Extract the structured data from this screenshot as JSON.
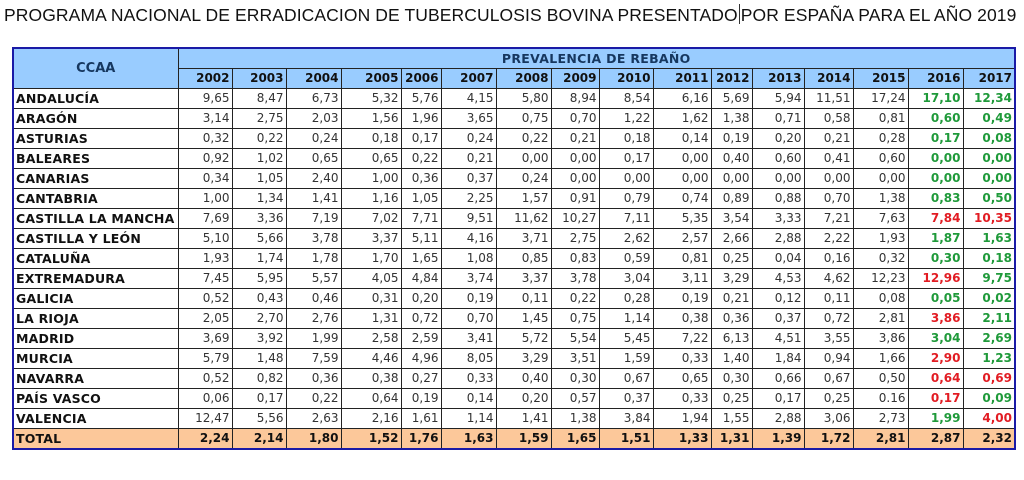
{
  "title_part1": "PROGRAMA NACIONAL DE ERRADICACION DE TUBERCULOSIS BOVINA PRESENTADO",
  "title_part2": "POR ESPAÑA PARA EL AÑO 2019",
  "table": {
    "ccaa_header": "CCAA",
    "group_header": "PREVALENCIA DE REBAÑO",
    "years": [
      "2002",
      "2003",
      "2004",
      "2005",
      "2006",
      "2007",
      "2008",
      "2009",
      "2010",
      "2011",
      "2012",
      "2013",
      "2014",
      "2015",
      "2016",
      "2017"
    ],
    "colors": {
      "green": "#1f9a3a",
      "red": "#e21c23",
      "header_bg": "#99ccff",
      "total_bg": "#fcc89a",
      "border": "#1a1aa6"
    },
    "rows": [
      {
        "name": "ANDALUCÍA",
        "values": [
          "9,65",
          "8,47",
          "6,73",
          "5,32",
          "5,76",
          "4,15",
          "5,80",
          "8,94",
          "8,54",
          "6,16",
          "5,69",
          "5,94",
          "11,51",
          "17,24",
          "17,10",
          "12,34"
        ],
        "c2016": "green",
        "c2017": "green"
      },
      {
        "name": "ARAGÓN",
        "values": [
          "3,14",
          "2,75",
          "2,03",
          "1,56",
          "1,96",
          "3,65",
          "0,75",
          "0,70",
          "1,22",
          "1,62",
          "1,38",
          "0,71",
          "0,58",
          "0,81",
          "0,60",
          "0,49"
        ],
        "c2016": "green",
        "c2017": "green"
      },
      {
        "name": "ASTURIAS",
        "values": [
          "0,32",
          "0,22",
          "0,24",
          "0,18",
          "0,17",
          "0,24",
          "0,22",
          "0,21",
          "0,18",
          "0,14",
          "0,19",
          "0,20",
          "0,21",
          "0,28",
          "0,17",
          "0,08"
        ],
        "c2016": "green",
        "c2017": "green"
      },
      {
        "name": "BALEARES",
        "values": [
          "0,92",
          "1,02",
          "0,65",
          "0,65",
          "0,22",
          "0,21",
          "0,00",
          "0,00",
          "0,17",
          "0,00",
          "0,40",
          "0,60",
          "0,41",
          "0,60",
          "0,00",
          "0,00"
        ],
        "c2016": "green",
        "c2017": "green"
      },
      {
        "name": "CANARIAS",
        "values": [
          "0,34",
          "1,05",
          "2,40",
          "1,00",
          "0,36",
          "0,37",
          "0,24",
          "0,00",
          "0,00",
          "0,00",
          "0,00",
          "0,00",
          "0,00",
          "0,00",
          "0,00",
          "0,00"
        ],
        "c2016": "green",
        "c2017": "green"
      },
      {
        "name": "CANTABRIA",
        "values": [
          "1,00",
          "1,34",
          "1,41",
          "1,16",
          "1,05",
          "2,25",
          "1,57",
          "0,91",
          "0,79",
          "0,74",
          "0,89",
          "0,88",
          "0,70",
          "1,38",
          "0,83",
          "0,50"
        ],
        "c2016": "green",
        "c2017": "green"
      },
      {
        "name": "CASTILLA LA MANCHA",
        "values": [
          "7,69",
          "3,36",
          "7,19",
          "7,02",
          "7,71",
          "9,51",
          "11,62",
          "10,27",
          "7,11",
          "5,35",
          "3,54",
          "3,33",
          "7,21",
          "7,63",
          "7,84",
          "10,35"
        ],
        "c2016": "red",
        "c2017": "red"
      },
      {
        "name": "CASTILLA Y LEÓN",
        "values": [
          "5,10",
          "5,66",
          "3,78",
          "3,37",
          "5,11",
          "4,16",
          "3,71",
          "2,75",
          "2,62",
          "2,57",
          "2,66",
          "2,88",
          "2,22",
          "1,93",
          "1,87",
          "1,63"
        ],
        "c2016": "green",
        "c2017": "green"
      },
      {
        "name": "CATALUÑA",
        "values": [
          "1,93",
          "1,74",
          "1,78",
          "1,70",
          "1,65",
          "1,08",
          "0,85",
          "0,83",
          "0,59",
          "0,81",
          "0,25",
          "0,04",
          "0,16",
          "0,32",
          "0,30",
          "0,18"
        ],
        "c2016": "green",
        "c2017": "green"
      },
      {
        "name": "EXTREMADURA",
        "values": [
          "7,45",
          "5,95",
          "5,57",
          "4,05",
          "4,84",
          "3,74",
          "3,37",
          "3,78",
          "3,04",
          "3,11",
          "3,29",
          "4,53",
          "4,62",
          "12,23",
          "12,96",
          "9,75"
        ],
        "c2016": "red",
        "c2017": "green"
      },
      {
        "name": "GALICIA",
        "values": [
          "0,52",
          "0,43",
          "0,46",
          "0,31",
          "0,20",
          "0,19",
          "0,11",
          "0,22",
          "0,28",
          "0,19",
          "0,21",
          "0,12",
          "0,11",
          "0,08",
          "0,05",
          "0,02"
        ],
        "c2016": "green",
        "c2017": "green"
      },
      {
        "name": "LA RIOJA",
        "values": [
          "2,05",
          "2,70",
          "2,76",
          "1,31",
          "0,72",
          "0,70",
          "1,45",
          "0,75",
          "1,14",
          "0,38",
          "0,36",
          "0,37",
          "0,72",
          "2,81",
          "3,86",
          "2,11"
        ],
        "c2016": "red",
        "c2017": "green"
      },
      {
        "name": "MADRID",
        "values": [
          "3,69",
          "3,92",
          "1,99",
          "2,58",
          "2,59",
          "3,41",
          "5,72",
          "5,54",
          "5,45",
          "7,22",
          "6,13",
          "4,51",
          "3,55",
          "3,86",
          "3,04",
          "2,69"
        ],
        "c2016": "green",
        "c2017": "green"
      },
      {
        "name": "MURCIA",
        "values": [
          "5,79",
          "1,48",
          "7,59",
          "4,46",
          "4,96",
          "8,05",
          "3,29",
          "3,51",
          "1,59",
          "0,33",
          "1,40",
          "1,84",
          "0,94",
          "1,66",
          "2,90",
          "1,23"
        ],
        "c2016": "red",
        "c2017": "green"
      },
      {
        "name": "NAVARRA",
        "values": [
          "0,52",
          "0,82",
          "0,36",
          "0,38",
          "0,27",
          "0,33",
          "0,40",
          "0,30",
          "0,67",
          "0,65",
          "0,30",
          "0,66",
          "0,67",
          "0,50",
          "0,64",
          "0,69"
        ],
        "c2016": "red",
        "c2017": "red"
      },
      {
        "name": "PAÍS VASCO",
        "values": [
          "0,06",
          "0,17",
          "0,22",
          "0,64",
          "0,19",
          "0,14",
          "0,20",
          "0,57",
          "0,37",
          "0,33",
          "0,25",
          "0,17",
          "0,25",
          "0.16",
          "0,17",
          "0,09"
        ],
        "c2016": "red",
        "c2017": "green"
      },
      {
        "name": "VALENCIA",
        "values": [
          "12,47",
          "5,56",
          "2,63",
          "2,16",
          "1,61",
          "1,14",
          "1,41",
          "1,38",
          "3,84",
          "1,94",
          "1,55",
          "2,88",
          "3,06",
          "2,73",
          "1,99",
          "4,00"
        ],
        "c2016": "green",
        "c2017": "red"
      }
    ],
    "total": {
      "name": "TOTAL",
      "values": [
        "2,24",
        "2,14",
        "1,80",
        "1,52",
        "1,76",
        "1,63",
        "1,59",
        "1,65",
        "1,51",
        "1,33",
        "1,31",
        "1,39",
        "1,72",
        "2,81",
        "2,87",
        "2,32"
      ]
    }
  }
}
